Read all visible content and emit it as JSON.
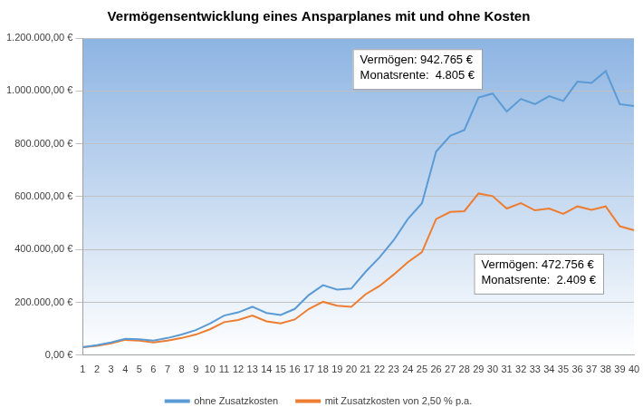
{
  "chart_data": {
    "type": "line",
    "title": "Vermögensentwicklung eines Ansparplanes mit und ohne Kosten",
    "categories": [
      "1",
      "2",
      "3",
      "4",
      "5",
      "6",
      "7",
      "8",
      "9",
      "10",
      "11",
      "12",
      "13",
      "14",
      "15",
      "16",
      "17",
      "18",
      "19",
      "20",
      "21",
      "22",
      "23",
      "24",
      "25",
      "26",
      "27",
      "28",
      "29",
      "30",
      "31",
      "32",
      "33",
      "34",
      "35",
      "36",
      "37",
      "38",
      "39",
      "40"
    ],
    "series": [
      {
        "name": "ohne Zusatzkosten",
        "color": "#5b9bd5",
        "values": [
          30000,
          38000,
          48000,
          62000,
          60000,
          55000,
          65000,
          78000,
          95000,
          120000,
          150000,
          162000,
          183000,
          160000,
          152000,
          175000,
          228000,
          265000,
          248000,
          252000,
          315000,
          370000,
          435000,
          515000,
          575000,
          770000,
          830000,
          852000,
          975000,
          990000,
          922000,
          970000,
          950000,
          980000,
          962000,
          1035000,
          1030000,
          1075000,
          950000,
          942765
        ]
      },
      {
        "name": "mit Zusatzkosten von 2,50 % p.a.",
        "color": "#ed7d31",
        "values": [
          30000,
          35000,
          45000,
          58000,
          55000,
          48000,
          55000,
          65000,
          78000,
          98000,
          125000,
          133000,
          150000,
          128000,
          120000,
          135000,
          175000,
          202000,
          187000,
          183000,
          230000,
          262000,
          305000,
          352000,
          390000,
          515000,
          542000,
          545000,
          612000,
          602000,
          555000,
          575000,
          548000,
          555000,
          535000,
          563000,
          550000,
          563000,
          488000,
          472756
        ]
      }
    ],
    "ylim": [
      0,
      1200000
    ],
    "yticks": [
      {
        "value": 0,
        "label": "0,00 €"
      },
      {
        "value": 200000,
        "label": "200.000,00 €"
      },
      {
        "value": 400000,
        "label": "400.000,00 €"
      },
      {
        "value": 600000,
        "label": "600.000,00 €"
      },
      {
        "value": 800000,
        "label": "800.000,00 €"
      },
      {
        "value": 1000000,
        "label": "1.000.000,00 €"
      },
      {
        "value": 1200000,
        "label": "1.200.000,00 €"
      }
    ],
    "grid": true,
    "legend": "bottom",
    "marker": "none",
    "annotations": [
      {
        "lines": [
          "Vermögen: 942.765 €",
          "Monatsrente:  4.805 €"
        ]
      },
      {
        "lines": [
          "Vermögen: 472.756 €",
          "Monatsrente:  2.409 €"
        ]
      }
    ]
  }
}
